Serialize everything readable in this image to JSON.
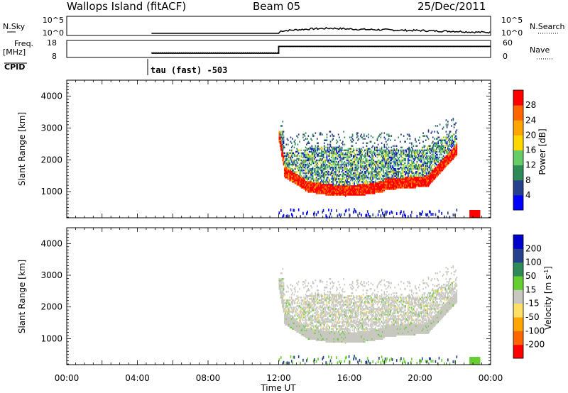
{
  "header": {
    "site": "Wallops Island (fitACF)",
    "beam": "Beam 05",
    "date": "25/Dec/2011"
  },
  "top_panels": {
    "nsky_label": "N.Sky",
    "nsky_ticks": [
      "10^5",
      "10^0"
    ],
    "nsearch_label": "N.Search",
    "nsearch_ticks": [
      "10^5",
      "10^0"
    ],
    "freq_label": "Freq.",
    "freq_unit": "[MHz]",
    "freq_ticks": [
      "18",
      "8"
    ],
    "nave_label": "Nave",
    "nave_ticks": [
      "60",
      "0"
    ],
    "cpid_label": "CPID",
    "cpid_text": "tau (fast) -503"
  },
  "colors": {
    "power_bar": [
      "#0000ff",
      "#27408b",
      "#2e8b57",
      "#66cd66",
      "#ffd700",
      "#ffa500",
      "#ff6600",
      "#ff0000"
    ],
    "velocity_bar": [
      "#ff0000",
      "#ff6600",
      "#ffa500",
      "#ffe066",
      "#c8c8c0",
      "#66cd33",
      "#2e8b57",
      "#27408b",
      "#0000cd"
    ],
    "gray_scatter": "#c8c8c0"
  },
  "chart_data": [
    {
      "type": "line",
      "title": "N.Sky / N.Search",
      "ylabel": "N.Sky",
      "x_hours": [
        0,
        4.8,
        12.0,
        12.1,
        13,
        14,
        15,
        16,
        17,
        18,
        19,
        20,
        21,
        22,
        23,
        24
      ],
      "y_log10": [
        null,
        0,
        0,
        0.9,
        1.4,
        1.8,
        2.0,
        1.7,
        1.5,
        1.4,
        1.2,
        1.1,
        0.9,
        0.8,
        0.5,
        0.4
      ]
    },
    {
      "type": "line",
      "title": "Freq. / Nave",
      "ylabel": "Freq. [MHz]",
      "ylim": [
        8,
        18
      ],
      "x_hours": [
        4.8,
        12.0,
        12.0,
        24
      ],
      "freq_mhz": [
        10.5,
        10.5,
        14.5,
        14.5
      ]
    },
    {
      "type": "heatmap",
      "title": "Power",
      "ylabel": "Slant Range [km]",
      "xlabel": "Time UT",
      "x_ticks": [
        "00:00",
        "04:00",
        "08:00",
        "12:00",
        "16:00",
        "20:00",
        "00:00"
      ],
      "y_ticks": [
        1000,
        2000,
        3000,
        4000
      ],
      "ylim": [
        180,
        4500
      ],
      "colorbar_label": "Power [dB]",
      "colorbar_ticks": [
        4,
        8,
        12,
        16,
        20,
        24,
        28
      ],
      "x_range_hours": [
        0,
        24
      ],
      "data_start_hour": 12.0
    },
    {
      "type": "heatmap",
      "title": "Velocity",
      "ylabel": "Slant Range [km]",
      "xlabel": "Time UT",
      "x_ticks": [
        "00:00",
        "04:00",
        "08:00",
        "12:00",
        "16:00",
        "20:00",
        "00:00"
      ],
      "y_ticks": [
        1000,
        2000,
        3000,
        4000
      ],
      "ylim": [
        180,
        4500
      ],
      "colorbar_label": "Velocity [m s^-1]",
      "colorbar_ticks": [
        200,
        100,
        50,
        15,
        -15,
        -50,
        -100,
        -200
      ],
      "x_range_hours": [
        0,
        24
      ],
      "data_start_hour": 12.0
    }
  ],
  "axis": {
    "xlabel": "Time UT",
    "slant_label": "Slant Range [km]",
    "power_label": "Power [dB]",
    "velocity_label": "Velocity [m s",
    "velocity_sup": "-1",
    "velocity_close": "]"
  }
}
